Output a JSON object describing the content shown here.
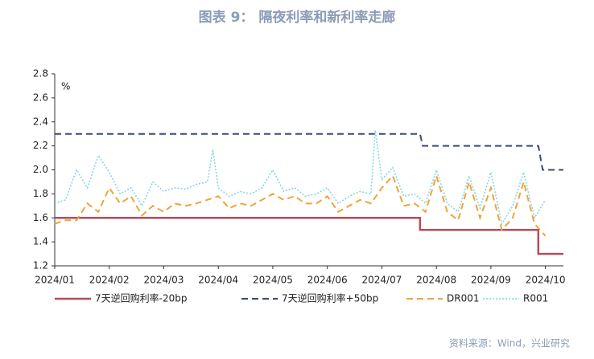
{
  "chart_data": {
    "type": "line",
    "title": "图表 9： 隔夜利率和新利率走廊",
    "y_unit": "%",
    "source": "资料来源：Wind，兴业研究",
    "xlim": [
      0,
      9.33
    ],
    "xticks": [
      {
        "value": 0,
        "label": "2024/01"
      },
      {
        "value": 1,
        "label": "2024/02"
      },
      {
        "value": 2,
        "label": "2024/03"
      },
      {
        "value": 3,
        "label": "2024/04"
      },
      {
        "value": 4,
        "label": "2024/05"
      },
      {
        "value": 5,
        "label": "2024/06"
      },
      {
        "value": 6,
        "label": "2024/07"
      },
      {
        "value": 7,
        "label": "2024/08"
      },
      {
        "value": 8,
        "label": "2024/09"
      },
      {
        "value": 9,
        "label": "2024/10"
      }
    ],
    "ylim": [
      1.2,
      2.8
    ],
    "yticks": [
      {
        "value": 1.2,
        "label": "1.2"
      },
      {
        "value": 1.4,
        "label": "1.4"
      },
      {
        "value": 1.6,
        "label": "1.6"
      },
      {
        "value": 1.8,
        "label": "1.8"
      },
      {
        "value": 2.0,
        "label": "2.0"
      },
      {
        "value": 2.2,
        "label": "2.2"
      },
      {
        "value": 2.4,
        "label": "2.4"
      },
      {
        "value": 2.6,
        "label": "2.6"
      },
      {
        "value": 2.8,
        "label": "2.8"
      }
    ],
    "grid": false,
    "series": [
      {
        "name": "7天逆回购利率-20bp",
        "color": "#b94a5c",
        "dash": "solid",
        "x": [
          0,
          6.7,
          6.7,
          8.87,
          8.87,
          9.33
        ],
        "values": [
          1.6,
          1.6,
          1.5,
          1.5,
          1.3,
          1.3
        ]
      },
      {
        "name": "7天逆回购利率+50bp",
        "color": "#3c4a6e",
        "dash": "dashed",
        "x": [
          0,
          6.7,
          6.75,
          8.87,
          8.95,
          9.33
        ],
        "values": [
          2.3,
          2.3,
          2.2,
          2.2,
          2.0,
          2.0
        ]
      },
      {
        "name": "DR001",
        "color": "#f0a33a",
        "dash": "dashed",
        "x": [
          0,
          0.2,
          0.4,
          0.6,
          0.8,
          1.0,
          1.2,
          1.4,
          1.6,
          1.8,
          2.0,
          2.2,
          2.4,
          2.6,
          2.8,
          3.0,
          3.2,
          3.4,
          3.6,
          3.8,
          4.0,
          4.2,
          4.4,
          4.6,
          4.8,
          5.0,
          5.2,
          5.4,
          5.6,
          5.8,
          6.0,
          6.2,
          6.4,
          6.6,
          6.8,
          7.0,
          7.2,
          7.4,
          7.6,
          7.8,
          8.0,
          8.2,
          8.4,
          8.6,
          8.8,
          9.0
        ],
        "values": [
          1.55,
          1.58,
          1.58,
          1.72,
          1.65,
          1.85,
          1.72,
          1.78,
          1.62,
          1.7,
          1.65,
          1.72,
          1.7,
          1.72,
          1.75,
          1.78,
          1.68,
          1.72,
          1.7,
          1.75,
          1.8,
          1.75,
          1.78,
          1.72,
          1.72,
          1.78,
          1.65,
          1.7,
          1.75,
          1.72,
          1.85,
          1.95,
          1.7,
          1.72,
          1.65,
          1.95,
          1.65,
          1.58,
          1.9,
          1.6,
          1.85,
          1.5,
          1.6,
          1.9,
          1.55,
          1.45
        ]
      },
      {
        "name": "R001",
        "color": "#7fd4e3",
        "dash": "dotted",
        "x": [
          0,
          0.2,
          0.4,
          0.6,
          0.8,
          1.0,
          1.2,
          1.4,
          1.6,
          1.8,
          2.0,
          2.2,
          2.4,
          2.6,
          2.8,
          2.9,
          3.0,
          3.2,
          3.4,
          3.6,
          3.8,
          4.0,
          4.2,
          4.4,
          4.6,
          4.8,
          5.0,
          5.2,
          5.4,
          5.6,
          5.8,
          5.88,
          6.0,
          6.2,
          6.4,
          6.6,
          6.8,
          7.0,
          7.2,
          7.4,
          7.6,
          7.8,
          8.0,
          8.2,
          8.4,
          8.6,
          8.8,
          9.0
        ],
        "values": [
          1.72,
          1.75,
          2.0,
          1.85,
          2.12,
          1.98,
          1.8,
          1.85,
          1.7,
          1.9,
          1.82,
          1.85,
          1.84,
          1.88,
          1.9,
          2.17,
          1.85,
          1.78,
          1.82,
          1.8,
          1.85,
          2.0,
          1.82,
          1.85,
          1.78,
          1.8,
          1.85,
          1.72,
          1.78,
          1.82,
          1.8,
          2.33,
          1.92,
          2.02,
          1.78,
          1.8,
          1.72,
          2.0,
          1.72,
          1.65,
          1.95,
          1.68,
          1.98,
          1.55,
          1.7,
          1.98,
          1.6,
          1.75
        ]
      }
    ]
  }
}
